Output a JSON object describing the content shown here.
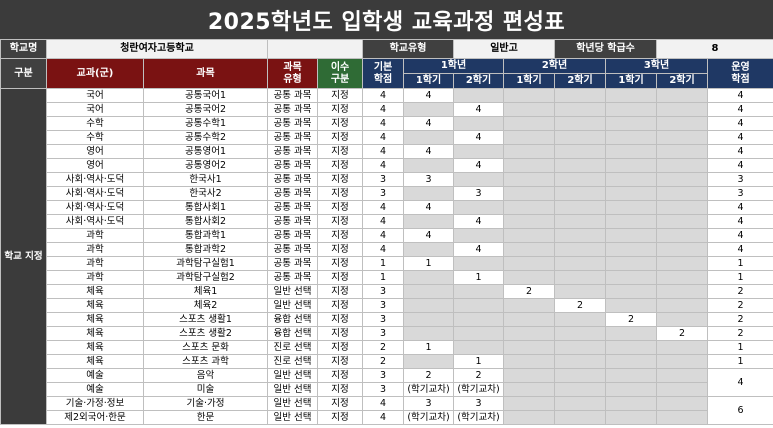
{
  "title": "2025학년도 입학생 교육과정 편성표",
  "info": {
    "school_label": "학교명",
    "school_name": "청란여자고등학교",
    "type_label": "학교유형",
    "type_value": "일반고",
    "classes_label": "학년당 학급수",
    "classes_value": "8"
  },
  "header": {
    "category": "구분",
    "subject_group": "교과(군)",
    "subject": "과목",
    "subject_type_1": "과목",
    "subject_type_2": "유형",
    "completion_1": "이수",
    "completion_2": "구분",
    "base_1": "기본",
    "base_2": "학점",
    "grade1": "1학년",
    "grade2": "2학년",
    "grade3": "3학년",
    "semester1": "1학기",
    "semester2": "2학기",
    "operate_1": "운영",
    "operate_2": "학점"
  },
  "group_label": "학교 지정",
  "rows": [
    {
      "group": "국어",
      "subject": "공통국어1",
      "type": "공통 과목",
      "div": "지정",
      "base": "4",
      "s": [
        "4",
        "",
        "",
        "",
        "",
        ""
      ],
      "op": "4"
    },
    {
      "group": "국어",
      "subject": "공통국어2",
      "type": "공통 과목",
      "div": "지정",
      "base": "4",
      "s": [
        "",
        "4",
        "",
        "",
        "",
        ""
      ],
      "op": "4"
    },
    {
      "group": "수학",
      "subject": "공통수학1",
      "type": "공통 과목",
      "div": "지정",
      "base": "4",
      "s": [
        "4",
        "",
        "",
        "",
        "",
        ""
      ],
      "op": "4"
    },
    {
      "group": "수학",
      "subject": "공통수학2",
      "type": "공통 과목",
      "div": "지정",
      "base": "4",
      "s": [
        "",
        "4",
        "",
        "",
        "",
        ""
      ],
      "op": "4"
    },
    {
      "group": "영어",
      "subject": "공통영어1",
      "type": "공통 과목",
      "div": "지정",
      "base": "4",
      "s": [
        "4",
        "",
        "",
        "",
        "",
        ""
      ],
      "op": "4"
    },
    {
      "group": "영어",
      "subject": "공통영어2",
      "type": "공통 과목",
      "div": "지정",
      "base": "4",
      "s": [
        "",
        "4",
        "",
        "",
        "",
        ""
      ],
      "op": "4"
    },
    {
      "group": "사회·역사·도덕",
      "subject": "한국사1",
      "type": "공통 과목",
      "div": "지정",
      "base": "3",
      "s": [
        "3",
        "",
        "",
        "",
        "",
        ""
      ],
      "op": "3"
    },
    {
      "group": "사회·역사·도덕",
      "subject": "한국사2",
      "type": "공통 과목",
      "div": "지정",
      "base": "3",
      "s": [
        "",
        "3",
        "",
        "",
        "",
        ""
      ],
      "op": "3"
    },
    {
      "group": "사회·역사·도덕",
      "subject": "통합사회1",
      "type": "공통 과목",
      "div": "지정",
      "base": "4",
      "s": [
        "4",
        "",
        "",
        "",
        "",
        ""
      ],
      "op": "4"
    },
    {
      "group": "사회·역사·도덕",
      "subject": "통합사회2",
      "type": "공통 과목",
      "div": "지정",
      "base": "4",
      "s": [
        "",
        "4",
        "",
        "",
        "",
        ""
      ],
      "op": "4"
    },
    {
      "group": "과학",
      "subject": "통합과학1",
      "type": "공통 과목",
      "div": "지정",
      "base": "4",
      "s": [
        "4",
        "",
        "",
        "",
        "",
        ""
      ],
      "op": "4"
    },
    {
      "group": "과학",
      "subject": "통합과학2",
      "type": "공통 과목",
      "div": "지정",
      "base": "4",
      "s": [
        "",
        "4",
        "",
        "",
        "",
        ""
      ],
      "op": "4"
    },
    {
      "group": "과학",
      "subject": "과학탐구실험1",
      "type": "공통 과목",
      "div": "지정",
      "base": "1",
      "s": [
        "1",
        "",
        "",
        "",
        "",
        ""
      ],
      "op": "1"
    },
    {
      "group": "과학",
      "subject": "과학탐구실험2",
      "type": "공통 과목",
      "div": "지정",
      "base": "1",
      "s": [
        "",
        "1",
        "",
        "",
        "",
        ""
      ],
      "op": "1"
    },
    {
      "group": "체육",
      "subject": "체육1",
      "type": "일반 선택",
      "div": "지정",
      "base": "3",
      "s": [
        "",
        "",
        "2",
        "",
        "",
        ""
      ],
      "op": "2"
    },
    {
      "group": "체육",
      "subject": "체육2",
      "type": "일반 선택",
      "div": "지정",
      "base": "3",
      "s": [
        "",
        "",
        "",
        "2",
        "",
        ""
      ],
      "op": "2"
    },
    {
      "group": "체육",
      "subject": "스포츠 생활1",
      "type": "융합 선택",
      "div": "지정",
      "base": "3",
      "s": [
        "",
        "",
        "",
        "",
        "2",
        ""
      ],
      "op": "2"
    },
    {
      "group": "체육",
      "subject": "스포츠 생활2",
      "type": "융합 선택",
      "div": "지정",
      "base": "3",
      "s": [
        "",
        "",
        "",
        "",
        "",
        "2"
      ],
      "op": "2"
    },
    {
      "group": "체육",
      "subject": "스포츠 문화",
      "type": "진로 선택",
      "div": "지정",
      "base": "2",
      "s": [
        "1",
        "",
        "",
        "",
        "",
        ""
      ],
      "op": "1"
    },
    {
      "group": "체육",
      "subject": "스포츠 과학",
      "type": "진로 선택",
      "div": "지정",
      "base": "2",
      "s": [
        "",
        "1",
        "",
        "",
        "",
        ""
      ],
      "op": "1"
    }
  ],
  "pair_rows": [
    {
      "a": {
        "group": "예술",
        "subject": "음악",
        "type": "일반 선택",
        "div": "지정",
        "base": "3"
      },
      "b": {
        "group": "예술",
        "subject": "미술",
        "type": "일반 선택",
        "div": "지정",
        "base": "3"
      },
      "s1": "2",
      "s1_note": "(학기교차)",
      "s2": "2",
      "s2_note": "(학기교차)",
      "op": "4"
    },
    {
      "a": {
        "group": "기술·가정·정보",
        "subject": "기술·가정",
        "type": "일반 선택",
        "div": "지정",
        "base": "4"
      },
      "b": {
        "group": "제2외국어·한문",
        "subject": "한문",
        "type": "일반 선택",
        "div": "지정",
        "base": "4"
      },
      "s1": "3",
      "s1_note": "(학기교차)",
      "s2": "3",
      "s2_note": "(학기교차)",
      "op": "6"
    }
  ]
}
